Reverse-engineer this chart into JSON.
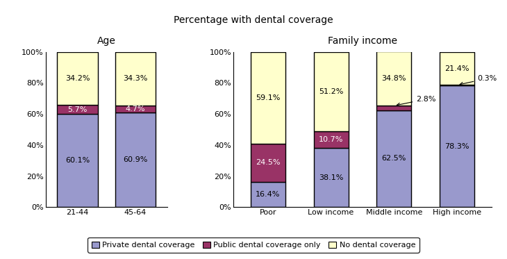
{
  "title": "Percentage with dental coverage",
  "age_subtitle": "Age",
  "income_subtitle": "Family income",
  "age_categories": [
    "21-44",
    "45-64"
  ],
  "income_categories": [
    "Poor",
    "Low income",
    "Middle income",
    "High income"
  ],
  "age_data": {
    "private": [
      60.1,
      60.9
    ],
    "public": [
      5.7,
      4.7
    ],
    "none": [
      34.2,
      34.3
    ]
  },
  "income_data": {
    "private": [
      16.4,
      38.1,
      62.5,
      78.3
    ],
    "public": [
      24.5,
      10.7,
      2.8,
      0.3
    ],
    "none": [
      59.1,
      51.2,
      34.8,
      21.4
    ]
  },
  "color_private": "#9999CC",
  "color_public": "#993366",
  "color_none": "#FFFFCC",
  "legend_labels": [
    "Private dental coverage",
    "Public dental coverage only",
    "No dental coverage"
  ],
  "yticks": [
    0,
    20,
    40,
    60,
    80,
    100
  ],
  "ytick_labels": [
    "0%",
    "20%",
    "40%",
    "60%",
    "80%",
    "100%"
  ],
  "title_fontsize": 10,
  "subtitle_fontsize": 10,
  "label_fontsize": 8,
  "tick_fontsize": 8,
  "legend_fontsize": 8
}
